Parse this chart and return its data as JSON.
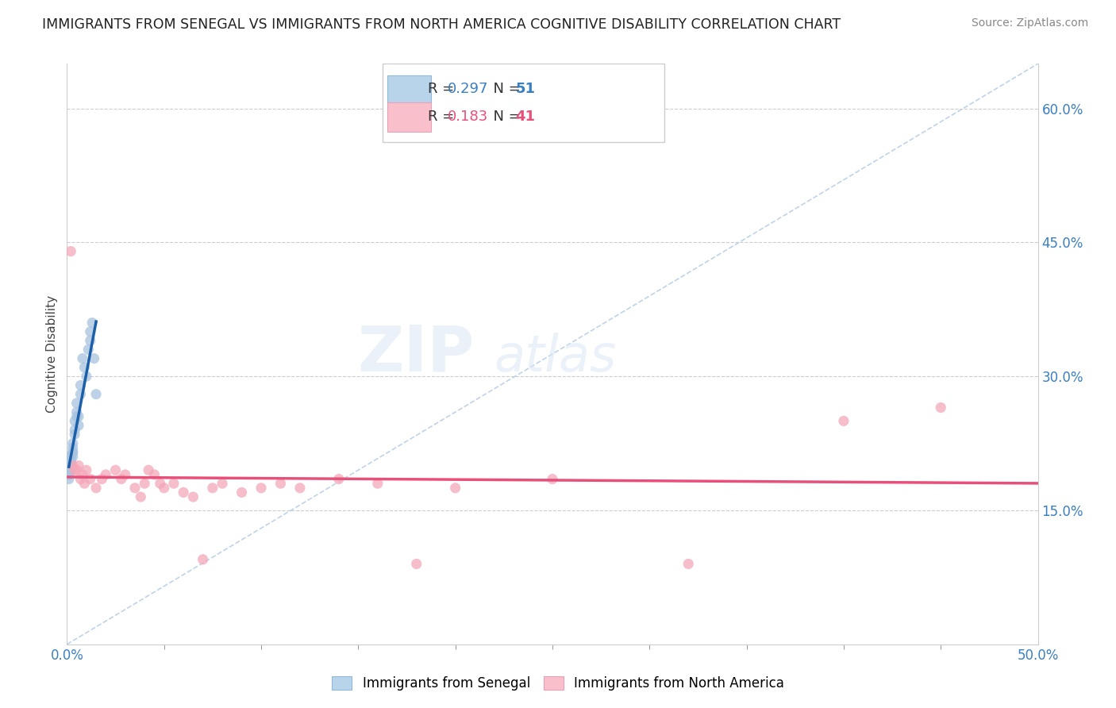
{
  "title": "IMMIGRANTS FROM SENEGAL VS IMMIGRANTS FROM NORTH AMERICA COGNITIVE DISABILITY CORRELATION CHART",
  "source": "Source: ZipAtlas.com",
  "ylabel": "Cognitive Disability",
  "ylabel_right_ticks": [
    "15.0%",
    "30.0%",
    "45.0%",
    "60.0%"
  ],
  "ylabel_right_vals": [
    0.15,
    0.3,
    0.45,
    0.6
  ],
  "xlim": [
    0.0,
    0.5
  ],
  "ylim": [
    0.0,
    0.65
  ],
  "r_blue": 0.297,
  "n_blue": 51,
  "r_pink": 0.183,
  "n_pink": 41,
  "blue_color": "#a8c4e0",
  "pink_color": "#f4a7b9",
  "blue_line_color": "#1a5fa8",
  "pink_line_color": "#e8507a",
  "diag_color": "#b8cee8",
  "background_color": "#ffffff",
  "legend_color_blue": "#b8d4ea",
  "legend_color_pink": "#f9c0cc",
  "blue_scatter_x": [
    0.001,
    0.001,
    0.001,
    0.001,
    0.001,
    0.001,
    0.001,
    0.001,
    0.001,
    0.001,
    0.001,
    0.001,
    0.001,
    0.001,
    0.001,
    0.001,
    0.001,
    0.001,
    0.001,
    0.001,
    0.002,
    0.002,
    0.002,
    0.002,
    0.002,
    0.002,
    0.002,
    0.003,
    0.003,
    0.003,
    0.003,
    0.003,
    0.004,
    0.004,
    0.004,
    0.005,
    0.005,
    0.005,
    0.006,
    0.006,
    0.007,
    0.007,
    0.008,
    0.009,
    0.01,
    0.011,
    0.012,
    0.012,
    0.013,
    0.014,
    0.015
  ],
  "blue_scatter_y": [
    0.195,
    0.2,
    0.205,
    0.21,
    0.195,
    0.2,
    0.195,
    0.2,
    0.205,
    0.195,
    0.2,
    0.195,
    0.19,
    0.185,
    0.195,
    0.19,
    0.2,
    0.195,
    0.19,
    0.195,
    0.205,
    0.2,
    0.21,
    0.195,
    0.21,
    0.2,
    0.205,
    0.22,
    0.225,
    0.215,
    0.215,
    0.21,
    0.25,
    0.24,
    0.235,
    0.27,
    0.26,
    0.255,
    0.255,
    0.245,
    0.29,
    0.28,
    0.32,
    0.31,
    0.3,
    0.33,
    0.34,
    0.35,
    0.36,
    0.32,
    0.28
  ],
  "pink_scatter_x": [
    0.002,
    0.003,
    0.004,
    0.005,
    0.006,
    0.007,
    0.008,
    0.009,
    0.01,
    0.012,
    0.015,
    0.018,
    0.02,
    0.025,
    0.028,
    0.03,
    0.035,
    0.038,
    0.04,
    0.042,
    0.045,
    0.048,
    0.05,
    0.055,
    0.06,
    0.065,
    0.07,
    0.075,
    0.08,
    0.09,
    0.1,
    0.11,
    0.12,
    0.14,
    0.16,
    0.18,
    0.2,
    0.25,
    0.32,
    0.4,
    0.45
  ],
  "pink_scatter_y": [
    0.44,
    0.2,
    0.195,
    0.195,
    0.2,
    0.185,
    0.19,
    0.18,
    0.195,
    0.185,
    0.175,
    0.185,
    0.19,
    0.195,
    0.185,
    0.19,
    0.175,
    0.165,
    0.18,
    0.195,
    0.19,
    0.18,
    0.175,
    0.18,
    0.17,
    0.165,
    0.095,
    0.175,
    0.18,
    0.17,
    0.175,
    0.18,
    0.175,
    0.185,
    0.18,
    0.09,
    0.175,
    0.185,
    0.09,
    0.25,
    0.265
  ]
}
